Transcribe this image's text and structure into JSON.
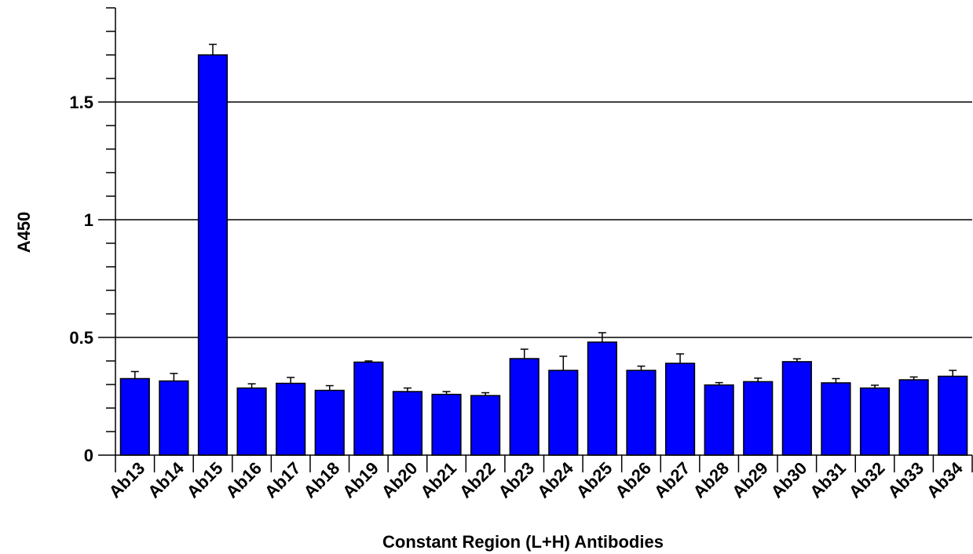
{
  "chart_data": {
    "type": "bar",
    "xlabel": "Constant Region (L+H) Antibodies",
    "ylabel": "A450",
    "ylim": [
      0,
      1.9
    ],
    "yticks": [
      0,
      0.5,
      1,
      1.5
    ],
    "ytick_labels": [
      "0",
      "0.5",
      "1",
      "1.5"
    ],
    "grid": "horizontal major lines",
    "bar_color": "#0000ff",
    "categories": [
      "Ab13",
      "Ab14",
      "Ab15",
      "Ab16",
      "Ab17",
      "Ab18",
      "Ab19",
      "Ab20",
      "Ab21",
      "Ab22",
      "Ab23",
      "Ab24",
      "Ab25",
      "Ab26",
      "Ab27",
      "Ab28",
      "Ab29",
      "Ab30",
      "Ab31",
      "Ab32",
      "Ab33",
      "Ab34"
    ],
    "values": [
      0.325,
      0.315,
      1.7,
      0.285,
      0.305,
      0.275,
      0.395,
      0.27,
      0.258,
      0.253,
      0.41,
      0.36,
      0.48,
      0.36,
      0.39,
      0.298,
      0.312,
      0.397,
      0.307,
      0.285,
      0.32,
      0.335
    ],
    "errors": [
      0.03,
      0.032,
      0.045,
      0.018,
      0.025,
      0.02,
      0.005,
      0.015,
      0.012,
      0.012,
      0.04,
      0.06,
      0.04,
      0.018,
      0.04,
      0.01,
      0.015,
      0.012,
      0.018,
      0.012,
      0.012,
      0.025
    ]
  }
}
